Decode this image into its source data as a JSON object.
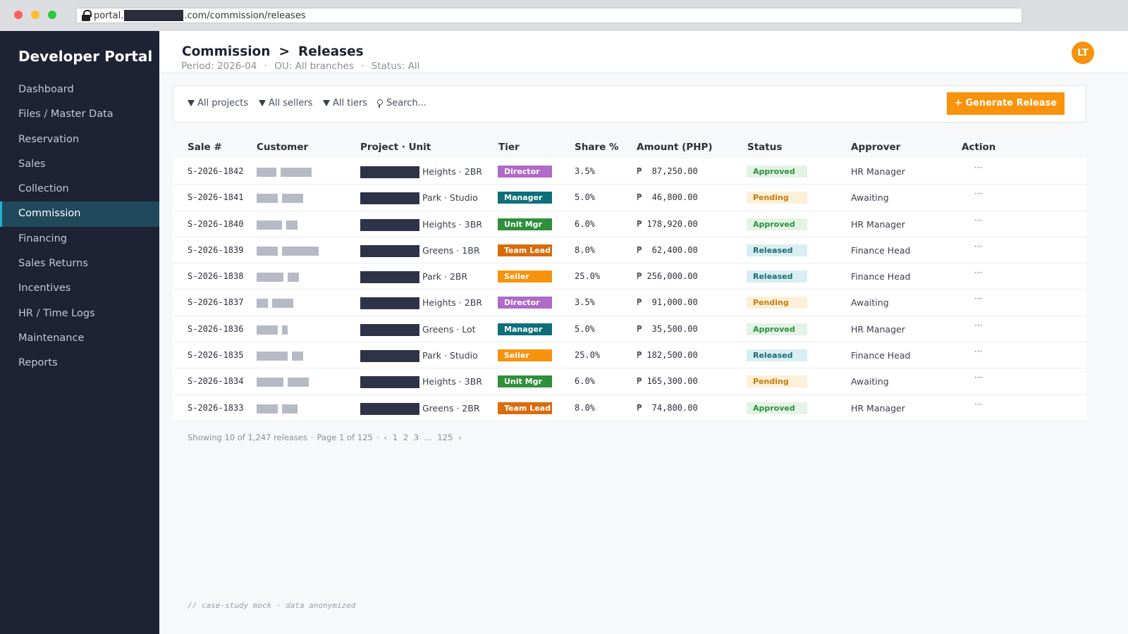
{
  "browser": {
    "url_prefix": "portal.",
    "url_suffix": ".com/commission/releases"
  },
  "sidebar": {
    "brand": "Developer Portal",
    "items": [
      {
        "label": "Dashboard"
      },
      {
        "label": "Files / Master Data"
      },
      {
        "label": "Reservation"
      },
      {
        "label": "Sales"
      },
      {
        "label": "Collection"
      },
      {
        "label": "Commission",
        "active": true
      },
      {
        "label": "Financing"
      },
      {
        "label": "Sales Returns"
      },
      {
        "label": "Incentives"
      },
      {
        "label": "HR / Time Logs"
      },
      {
        "label": "Maintenance"
      },
      {
        "label": "Reports"
      }
    ]
  },
  "header": {
    "crumb_parent": "Commission",
    "crumb_sep": ">",
    "crumb_current": "Releases",
    "period": "Period: 2026-04",
    "ou": "OU: All branches",
    "status": "Status: All",
    "dot": "·",
    "avatar": "LT"
  },
  "filters": {
    "projects": "All projects",
    "sellers": "All sellers",
    "tiers": "All tiers",
    "search_placeholder": "Search...",
    "generate_label": "+ Generate Release"
  },
  "table": {
    "columns": [
      "Sale #",
      "Customer",
      "Project · Unit",
      "Tier",
      "Share %",
      "Amount (PHP)",
      "Status",
      "Approver",
      "Action"
    ],
    "rows": [
      {
        "sale": "S-2026-1842",
        "unit": "Heights · 2BR",
        "tier": "Director",
        "share": "3.5%",
        "amount": "₱  87,250.00",
        "status": "Approved",
        "approver": "HR Manager",
        "action": "···"
      },
      {
        "sale": "S-2026-1841",
        "unit": "Park · Studio",
        "tier": "Manager",
        "share": "5.0%",
        "amount": "₱  46,800.00",
        "status": "Pending",
        "approver": "Awaiting",
        "action": "···"
      },
      {
        "sale": "S-2026-1840",
        "unit": "Heights · 3BR",
        "tier": "Unit Mgr",
        "share": "6.0%",
        "amount": "₱ 178,920.00",
        "status": "Approved",
        "approver": "HR Manager",
        "action": "···"
      },
      {
        "sale": "S-2026-1839",
        "unit": "Greens · 1BR",
        "tier": "Team Lead",
        "share": "8.0%",
        "amount": "₱  62,400.00",
        "status": "Released",
        "approver": "Finance Head",
        "action": "···"
      },
      {
        "sale": "S-2026-1838",
        "unit": "Park · 2BR",
        "tier": "Seller",
        "share": "25.0%",
        "amount": "₱ 256,000.00",
        "status": "Released",
        "approver": "Finance Head",
        "action": "···"
      },
      {
        "sale": "S-2026-1837",
        "unit": "Heights · 2BR",
        "tier": "Director",
        "share": "3.5%",
        "amount": "₱  91,000.00",
        "status": "Pending",
        "approver": "Awaiting",
        "action": "···"
      },
      {
        "sale": "S-2026-1836",
        "unit": "Greens · Lot",
        "tier": "Manager",
        "share": "5.0%",
        "amount": "₱  35,500.00",
        "status": "Approved",
        "approver": "HR Manager",
        "action": "···"
      },
      {
        "sale": "S-2026-1835",
        "unit": "Park · Studio",
        "tier": "Seller",
        "share": "25.0%",
        "amount": "₱ 182,500.00",
        "status": "Released",
        "approver": "Finance Head",
        "action": "···"
      },
      {
        "sale": "S-2026-1834",
        "unit": "Heights · 3BR",
        "tier": "Unit Mgr",
        "share": "6.0%",
        "amount": "₱ 165,300.00",
        "status": "Pending",
        "approver": "Awaiting",
        "action": "···"
      },
      {
        "sale": "S-2026-1833",
        "unit": "Greens · 2BR",
        "tier": "Team Lead",
        "share": "8.0%",
        "amount": "₱  74,800.00",
        "status": "Approved",
        "approver": "HR Manager",
        "action": "···"
      }
    ]
  },
  "tier_colors": {
    "Director": "#b06ac7",
    "Manager": "#0d6f7a",
    "Unit Mgr": "#2f8f3a",
    "Team Lead": "#d86b0c",
    "Seller": "#f7930d"
  },
  "status_colors": {
    "Approved": {
      "bg": "#e3f3e6",
      "fg": "#2f8f3a"
    },
    "Pending": {
      "bg": "#fdf0d9",
      "fg": "#c9790c"
    },
    "Released": {
      "bg": "#d8eef2",
      "fg": "#1b6b78"
    }
  },
  "pager": {
    "showing": "Showing 10 of 1,247 releases",
    "page": "Page 1 of 125",
    "prev": "‹",
    "pages": [
      "1",
      "2",
      "3",
      "...",
      "125"
    ],
    "next": "›"
  },
  "footnote": "// case-study mock · data anonymized"
}
